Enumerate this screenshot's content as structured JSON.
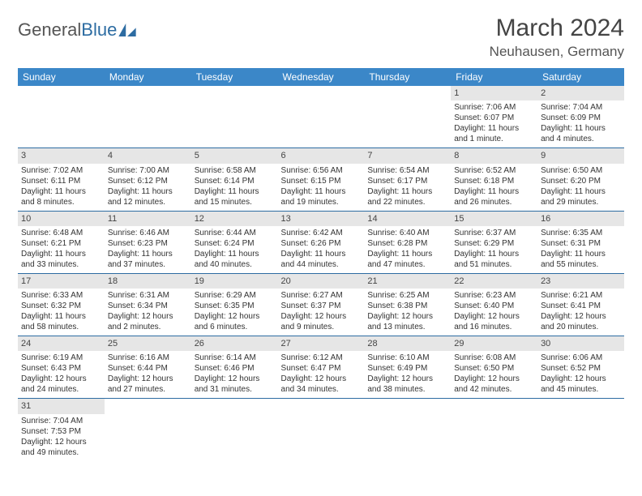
{
  "brand": {
    "part1": "General",
    "part2": "Blue"
  },
  "title": "March 2024",
  "location": "Neuhausen, Germany",
  "colors": {
    "header_bg": "#3b87c8",
    "row_divider": "#2d6ca2",
    "daynum_bg": "#e6e6e6"
  },
  "weekdays": [
    "Sunday",
    "Monday",
    "Tuesday",
    "Wednesday",
    "Thursday",
    "Friday",
    "Saturday"
  ],
  "weeks": [
    [
      null,
      null,
      null,
      null,
      null,
      {
        "d": "1",
        "sr": "7:06 AM",
        "ss": "6:07 PM",
        "dl": "11 hours and 1 minute."
      },
      {
        "d": "2",
        "sr": "7:04 AM",
        "ss": "6:09 PM",
        "dl": "11 hours and 4 minutes."
      }
    ],
    [
      {
        "d": "3",
        "sr": "7:02 AM",
        "ss": "6:11 PM",
        "dl": "11 hours and 8 minutes."
      },
      {
        "d": "4",
        "sr": "7:00 AM",
        "ss": "6:12 PM",
        "dl": "11 hours and 12 minutes."
      },
      {
        "d": "5",
        "sr": "6:58 AM",
        "ss": "6:14 PM",
        "dl": "11 hours and 15 minutes."
      },
      {
        "d": "6",
        "sr": "6:56 AM",
        "ss": "6:15 PM",
        "dl": "11 hours and 19 minutes."
      },
      {
        "d": "7",
        "sr": "6:54 AM",
        "ss": "6:17 PM",
        "dl": "11 hours and 22 minutes."
      },
      {
        "d": "8",
        "sr": "6:52 AM",
        "ss": "6:18 PM",
        "dl": "11 hours and 26 minutes."
      },
      {
        "d": "9",
        "sr": "6:50 AM",
        "ss": "6:20 PM",
        "dl": "11 hours and 29 minutes."
      }
    ],
    [
      {
        "d": "10",
        "sr": "6:48 AM",
        "ss": "6:21 PM",
        "dl": "11 hours and 33 minutes."
      },
      {
        "d": "11",
        "sr": "6:46 AM",
        "ss": "6:23 PM",
        "dl": "11 hours and 37 minutes."
      },
      {
        "d": "12",
        "sr": "6:44 AM",
        "ss": "6:24 PM",
        "dl": "11 hours and 40 minutes."
      },
      {
        "d": "13",
        "sr": "6:42 AM",
        "ss": "6:26 PM",
        "dl": "11 hours and 44 minutes."
      },
      {
        "d": "14",
        "sr": "6:40 AM",
        "ss": "6:28 PM",
        "dl": "11 hours and 47 minutes."
      },
      {
        "d": "15",
        "sr": "6:37 AM",
        "ss": "6:29 PM",
        "dl": "11 hours and 51 minutes."
      },
      {
        "d": "16",
        "sr": "6:35 AM",
        "ss": "6:31 PM",
        "dl": "11 hours and 55 minutes."
      }
    ],
    [
      {
        "d": "17",
        "sr": "6:33 AM",
        "ss": "6:32 PM",
        "dl": "11 hours and 58 minutes."
      },
      {
        "d": "18",
        "sr": "6:31 AM",
        "ss": "6:34 PM",
        "dl": "12 hours and 2 minutes."
      },
      {
        "d": "19",
        "sr": "6:29 AM",
        "ss": "6:35 PM",
        "dl": "12 hours and 6 minutes."
      },
      {
        "d": "20",
        "sr": "6:27 AM",
        "ss": "6:37 PM",
        "dl": "12 hours and 9 minutes."
      },
      {
        "d": "21",
        "sr": "6:25 AM",
        "ss": "6:38 PM",
        "dl": "12 hours and 13 minutes."
      },
      {
        "d": "22",
        "sr": "6:23 AM",
        "ss": "6:40 PM",
        "dl": "12 hours and 16 minutes."
      },
      {
        "d": "23",
        "sr": "6:21 AM",
        "ss": "6:41 PM",
        "dl": "12 hours and 20 minutes."
      }
    ],
    [
      {
        "d": "24",
        "sr": "6:19 AM",
        "ss": "6:43 PM",
        "dl": "12 hours and 24 minutes."
      },
      {
        "d": "25",
        "sr": "6:16 AM",
        "ss": "6:44 PM",
        "dl": "12 hours and 27 minutes."
      },
      {
        "d": "26",
        "sr": "6:14 AM",
        "ss": "6:46 PM",
        "dl": "12 hours and 31 minutes."
      },
      {
        "d": "27",
        "sr": "6:12 AM",
        "ss": "6:47 PM",
        "dl": "12 hours and 34 minutes."
      },
      {
        "d": "28",
        "sr": "6:10 AM",
        "ss": "6:49 PM",
        "dl": "12 hours and 38 minutes."
      },
      {
        "d": "29",
        "sr": "6:08 AM",
        "ss": "6:50 PM",
        "dl": "12 hours and 42 minutes."
      },
      {
        "d": "30",
        "sr": "6:06 AM",
        "ss": "6:52 PM",
        "dl": "12 hours and 45 minutes."
      }
    ],
    [
      {
        "d": "31",
        "sr": "7:04 AM",
        "ss": "7:53 PM",
        "dl": "12 hours and 49 minutes."
      },
      null,
      null,
      null,
      null,
      null,
      null
    ]
  ],
  "labels": {
    "sunrise": "Sunrise:",
    "sunset": "Sunset:",
    "daylight": "Daylight:"
  }
}
